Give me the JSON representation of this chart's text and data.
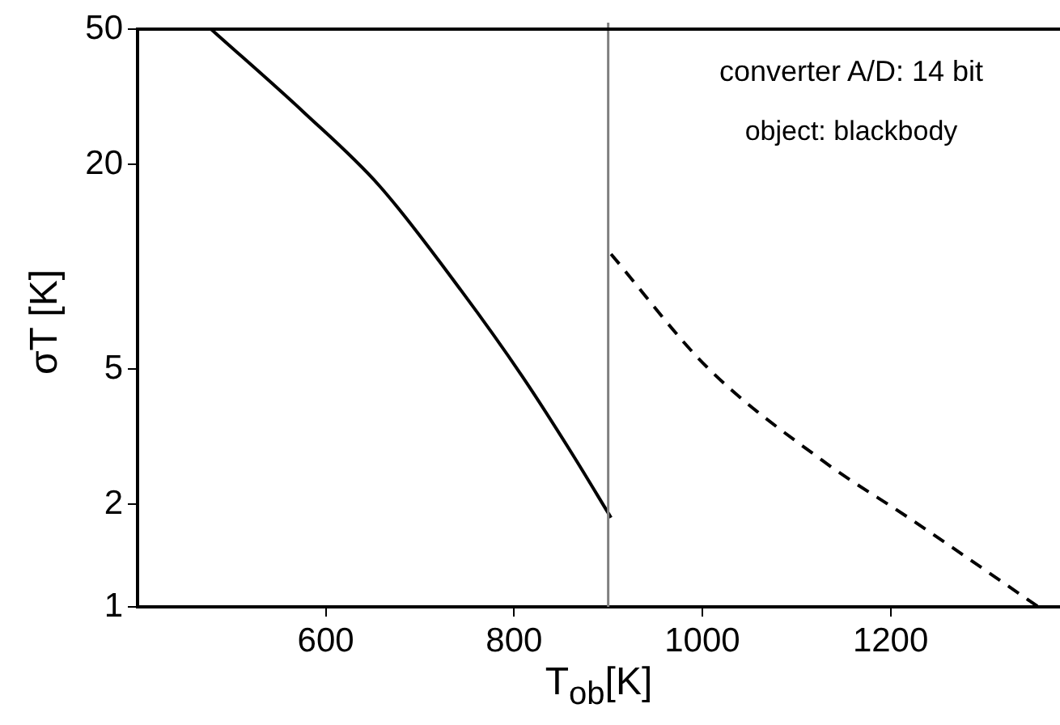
{
  "chart_data": {
    "type": "line",
    "xlabel": "T$_{ob}$[K]",
    "ylabel": "σT [K]",
    "annotations": [
      "converter A/D: 14 bit",
      "object: blackbody"
    ],
    "series": [
      {
        "color": "#000000",
        "line_style": "solid",
        "x": [
          478,
          577,
          657,
          744,
          809,
          861,
          903
        ],
        "values": [
          50,
          28.4,
          17.3,
          8.5,
          4.75,
          2.84,
          1.83
        ]
      },
      {
        "color": "#000000",
        "line_style": "dashed",
        "x": [
          903,
          1005,
          1132,
          1219,
          1357
        ],
        "values": [
          10.9,
          5.07,
          2.64,
          1.83,
          1.0
        ]
      }
    ],
    "ref_lines": [
      {
        "axis": "x",
        "value": 900,
        "color": "#808080"
      }
    ],
    "xlim": [
      400,
      1380
    ],
    "xticks": [
      600,
      800,
      1000,
      1200
    ],
    "ylim": [
      1,
      50
    ],
    "yticks": [
      1,
      2,
      5,
      20,
      50
    ],
    "log": "y",
    "grid": false,
    "legend": false,
    "marker": "none"
  }
}
